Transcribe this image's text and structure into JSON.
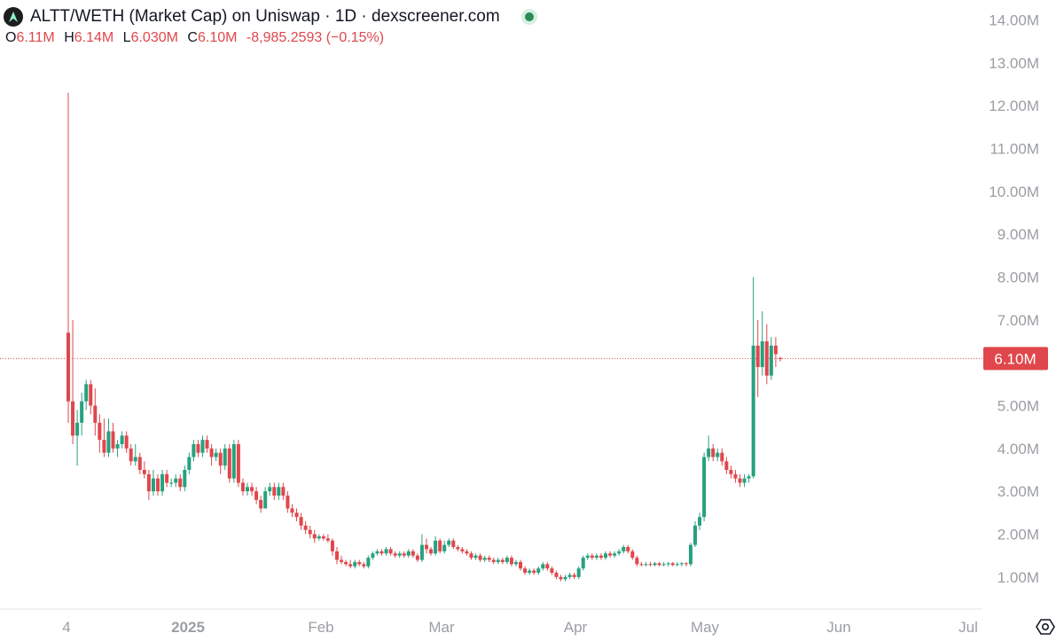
{
  "header": {
    "title": "ALTT/WETH (Market Cap) on Uniswap · 1D · dexscreener.com",
    "logo_icon": "dexscreener-logo-icon",
    "status_color": "#2e8b57",
    "ohlc": {
      "open_label": "O",
      "open": "6.11M",
      "high_label": "H",
      "high": "6.14M",
      "low_label": "L",
      "low": "6.030M",
      "close_label": "C",
      "close": "6.10M",
      "change": "-8,985.2593 (−0.15%)"
    }
  },
  "colors": {
    "up": "#26a17f",
    "down": "#e0474c",
    "axis_text": "#9b9ea3",
    "last_price_bg": "#e0474c"
  },
  "chart_data": {
    "type": "candlestick",
    "interval": "1D",
    "ylim": [
      0.5,
      14.3
    ],
    "y_unit": "M",
    "y_ticks": [
      "14.00M",
      "13.00M",
      "12.00M",
      "11.00M",
      "10.00M",
      "9.00M",
      "8.00M",
      "7.00M",
      "6.00M",
      "5.00M",
      "4.00M",
      "3.00M",
      "2.00M",
      "1.00M"
    ],
    "x_ticks": [
      "4",
      "2025",
      "Feb",
      "Mar",
      "Apr",
      "May",
      "Jun",
      "Jul"
    ],
    "last_price_label": "6.10M",
    "last_price": 6.1,
    "grid": false,
    "candles": [
      [
        6.7,
        5.1,
        12.3,
        4.6
      ],
      [
        5.1,
        4.3,
        7.0,
        4.1
      ],
      [
        4.3,
        4.6,
        4.9,
        3.6
      ],
      [
        4.6,
        5.1,
        5.3,
        4.3
      ],
      [
        5.1,
        5.5,
        5.6,
        4.9
      ],
      [
        5.5,
        5.0,
        5.6,
        4.8
      ],
      [
        5.0,
        4.6,
        5.4,
        4.3
      ],
      [
        4.6,
        4.2,
        4.8,
        3.9
      ],
      [
        4.2,
        3.9,
        4.7,
        3.8
      ],
      [
        3.9,
        4.4,
        4.7,
        3.8
      ],
      [
        4.4,
        4.0,
        4.6,
        3.9
      ],
      [
        4.0,
        4.1,
        4.2,
        3.8
      ],
      [
        4.1,
        4.3,
        4.4,
        4.0
      ],
      [
        4.3,
        4.0,
        4.4,
        3.9
      ],
      [
        4.0,
        3.7,
        4.1,
        3.6
      ],
      [
        3.7,
        3.8,
        4.1,
        3.6
      ],
      [
        3.8,
        3.5,
        3.9,
        3.4
      ],
      [
        3.5,
        3.4,
        3.7,
        3.3
      ],
      [
        3.4,
        3.0,
        3.5,
        2.8
      ],
      [
        3.0,
        3.3,
        3.5,
        2.9
      ],
      [
        3.3,
        3.0,
        3.4,
        2.9
      ],
      [
        3.0,
        3.4,
        3.5,
        2.9
      ],
      [
        3.4,
        3.2,
        3.5,
        3.1
      ],
      [
        3.2,
        3.2,
        3.3,
        3.1
      ],
      [
        3.2,
        3.3,
        3.4,
        3.1
      ],
      [
        3.3,
        3.1,
        3.4,
        3.0
      ],
      [
        3.1,
        3.5,
        3.6,
        3.0
      ],
      [
        3.5,
        3.8,
        3.9,
        3.4
      ],
      [
        3.8,
        4.1,
        4.2,
        3.7
      ],
      [
        4.1,
        3.9,
        4.2,
        3.8
      ],
      [
        3.9,
        4.2,
        4.3,
        3.8
      ],
      [
        4.2,
        4.0,
        4.3,
        3.9
      ],
      [
        4.0,
        3.8,
        4.1,
        3.6
      ],
      [
        3.8,
        3.9,
        4.0,
        3.7
      ],
      [
        3.9,
        3.6,
        4.0,
        3.4
      ],
      [
        3.6,
        4.0,
        4.1,
        3.5
      ],
      [
        4.0,
        3.3,
        4.1,
        3.2
      ],
      [
        3.3,
        4.1,
        4.2,
        3.2
      ],
      [
        4.1,
        3.2,
        4.2,
        3.1
      ],
      [
        3.2,
        3.0,
        3.3,
        2.9
      ],
      [
        3.0,
        3.1,
        3.2,
        2.9
      ],
      [
        3.1,
        3.0,
        3.2,
        2.9
      ],
      [
        3.0,
        2.8,
        3.1,
        2.7
      ],
      [
        2.8,
        2.6,
        2.9,
        2.5
      ],
      [
        2.6,
        3.0,
        3.1,
        2.6
      ],
      [
        3.0,
        3.1,
        3.2,
        2.9
      ],
      [
        3.1,
        2.9,
        3.2,
        2.8
      ],
      [
        2.9,
        3.1,
        3.2,
        2.8
      ],
      [
        3.1,
        2.9,
        3.2,
        2.8
      ],
      [
        2.9,
        2.6,
        3.0,
        2.5
      ],
      [
        2.6,
        2.5,
        2.7,
        2.4
      ],
      [
        2.5,
        2.4,
        2.6,
        2.3
      ],
      [
        2.4,
        2.2,
        2.5,
        2.1
      ],
      [
        2.2,
        2.1,
        2.3,
        2.0
      ],
      [
        2.1,
        2.0,
        2.2,
        1.9
      ],
      [
        2.0,
        1.9,
        2.1,
        1.8
      ],
      [
        1.9,
        1.95,
        2.0,
        1.85
      ],
      [
        1.95,
        1.9,
        2.0,
        1.85
      ],
      [
        1.9,
        1.85,
        2.0,
        1.8
      ],
      [
        1.85,
        1.6,
        1.9,
        1.5
      ],
      [
        1.6,
        1.4,
        1.7,
        1.3
      ],
      [
        1.4,
        1.35,
        1.5,
        1.3
      ],
      [
        1.35,
        1.3,
        1.4,
        1.25
      ],
      [
        1.3,
        1.25,
        1.4,
        1.2
      ],
      [
        1.25,
        1.35,
        1.4,
        1.2
      ],
      [
        1.35,
        1.3,
        1.4,
        1.25
      ],
      [
        1.3,
        1.25,
        1.35,
        1.2
      ],
      [
        1.25,
        1.45,
        1.5,
        1.2
      ],
      [
        1.45,
        1.55,
        1.6,
        1.4
      ],
      [
        1.55,
        1.6,
        1.65,
        1.5
      ],
      [
        1.6,
        1.55,
        1.65,
        1.5
      ],
      [
        1.55,
        1.65,
        1.7,
        1.5
      ],
      [
        1.65,
        1.55,
        1.7,
        1.5
      ],
      [
        1.55,
        1.5,
        1.6,
        1.45
      ],
      [
        1.5,
        1.55,
        1.6,
        1.45
      ],
      [
        1.55,
        1.5,
        1.6,
        1.45
      ],
      [
        1.5,
        1.6,
        1.65,
        1.45
      ],
      [
        1.6,
        1.5,
        1.65,
        1.45
      ],
      [
        1.5,
        1.4,
        1.55,
        1.35
      ],
      [
        1.4,
        1.75,
        2.0,
        1.35
      ],
      [
        1.75,
        1.65,
        1.9,
        1.55
      ],
      [
        1.65,
        1.55,
        1.7,
        1.5
      ],
      [
        1.55,
        1.85,
        1.95,
        1.5
      ],
      [
        1.85,
        1.6,
        1.9,
        1.55
      ],
      [
        1.6,
        1.75,
        1.85,
        1.55
      ],
      [
        1.75,
        1.85,
        1.9,
        1.7
      ],
      [
        1.85,
        1.7,
        1.9,
        1.65
      ],
      [
        1.7,
        1.65,
        1.75,
        1.6
      ],
      [
        1.65,
        1.6,
        1.7,
        1.55
      ],
      [
        1.6,
        1.55,
        1.65,
        1.5
      ],
      [
        1.55,
        1.45,
        1.6,
        1.4
      ],
      [
        1.45,
        1.5,
        1.55,
        1.4
      ],
      [
        1.5,
        1.4,
        1.55,
        1.35
      ],
      [
        1.4,
        1.45,
        1.5,
        1.35
      ],
      [
        1.45,
        1.4,
        1.5,
        1.35
      ],
      [
        1.4,
        1.35,
        1.45,
        1.3
      ],
      [
        1.35,
        1.4,
        1.45,
        1.3
      ],
      [
        1.4,
        1.35,
        1.45,
        1.3
      ],
      [
        1.35,
        1.45,
        1.5,
        1.3
      ],
      [
        1.45,
        1.3,
        1.5,
        1.25
      ],
      [
        1.3,
        1.35,
        1.4,
        1.25
      ],
      [
        1.35,
        1.2,
        1.4,
        1.15
      ],
      [
        1.2,
        1.1,
        1.25,
        1.05
      ],
      [
        1.1,
        1.15,
        1.2,
        1.05
      ],
      [
        1.15,
        1.1,
        1.2,
        1.05
      ],
      [
        1.1,
        1.2,
        1.25,
        1.05
      ],
      [
        1.2,
        1.3,
        1.35,
        1.15
      ],
      [
        1.3,
        1.2,
        1.35,
        1.15
      ],
      [
        1.2,
        1.1,
        1.25,
        1.05
      ],
      [
        1.1,
        1.0,
        1.15,
        0.95
      ],
      [
        1.0,
        0.95,
        1.05,
        0.9
      ],
      [
        0.95,
        1.0,
        1.05,
        0.9
      ],
      [
        1.0,
        1.05,
        1.1,
        0.95
      ],
      [
        1.05,
        1.0,
        1.1,
        0.95
      ],
      [
        1.0,
        1.2,
        1.25,
        0.95
      ],
      [
        1.2,
        1.45,
        1.5,
        1.15
      ],
      [
        1.45,
        1.5,
        1.55,
        1.4
      ],
      [
        1.5,
        1.45,
        1.55,
        1.4
      ],
      [
        1.45,
        1.5,
        1.55,
        1.4
      ],
      [
        1.5,
        1.45,
        1.55,
        1.4
      ],
      [
        1.45,
        1.55,
        1.6,
        1.4
      ],
      [
        1.55,
        1.5,
        1.6,
        1.45
      ],
      [
        1.5,
        1.55,
        1.6,
        1.45
      ],
      [
        1.55,
        1.6,
        1.65,
        1.5
      ],
      [
        1.6,
        1.7,
        1.75,
        1.55
      ],
      [
        1.7,
        1.6,
        1.75,
        1.55
      ],
      [
        1.6,
        1.45,
        1.65,
        1.4
      ],
      [
        1.45,
        1.3,
        1.5,
        1.25
      ],
      [
        1.3,
        1.28,
        1.35,
        1.25
      ],
      [
        1.28,
        1.3,
        1.35,
        1.25
      ],
      [
        1.3,
        1.28,
        1.35,
        1.25
      ],
      [
        1.28,
        1.32,
        1.35,
        1.25
      ],
      [
        1.32,
        1.28,
        1.35,
        1.25
      ],
      [
        1.28,
        1.3,
        1.35,
        1.25
      ],
      [
        1.3,
        1.32,
        1.35,
        1.25
      ],
      [
        1.32,
        1.28,
        1.35,
        1.25
      ],
      [
        1.28,
        1.3,
        1.35,
        1.25
      ],
      [
        1.3,
        1.32,
        1.35,
        1.25
      ],
      [
        1.32,
        1.3,
        1.35,
        1.25
      ],
      [
        1.3,
        1.75,
        1.8,
        1.25
      ],
      [
        1.75,
        2.2,
        2.3,
        1.7
      ],
      [
        2.2,
        2.4,
        2.5,
        2.1
      ],
      [
        2.4,
        3.8,
        3.9,
        2.3
      ],
      [
        3.8,
        4.0,
        4.3,
        3.7
      ],
      [
        4.0,
        3.8,
        4.1,
        3.7
      ],
      [
        3.8,
        3.9,
        4.0,
        3.7
      ],
      [
        3.9,
        3.7,
        4.0,
        3.6
      ],
      [
        3.7,
        3.5,
        3.8,
        3.4
      ],
      [
        3.5,
        3.4,
        3.6,
        3.3
      ],
      [
        3.4,
        3.3,
        3.5,
        3.2
      ],
      [
        3.3,
        3.2,
        3.4,
        3.1
      ],
      [
        3.2,
        3.3,
        3.4,
        3.1
      ],
      [
        3.3,
        3.35,
        3.4,
        3.2
      ],
      [
        3.35,
        6.4,
        8.0,
        3.3
      ],
      [
        6.4,
        5.9,
        7.0,
        5.2
      ],
      [
        5.9,
        6.5,
        7.2,
        5.7
      ],
      [
        6.5,
        5.7,
        6.9,
        5.5
      ],
      [
        5.7,
        6.4,
        6.6,
        5.6
      ],
      [
        6.4,
        6.2,
        6.6,
        5.9
      ],
      [
        6.11,
        6.1,
        6.14,
        6.03
      ]
    ]
  }
}
